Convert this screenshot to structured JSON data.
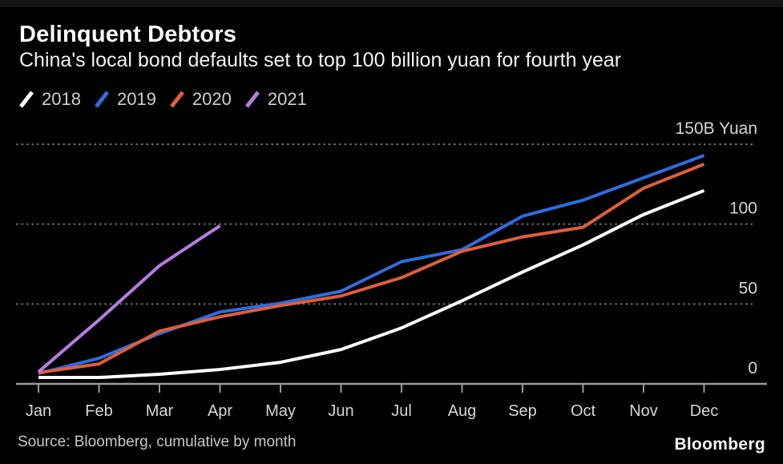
{
  "header": {
    "title": "Delinquent Debtors",
    "subtitle": "China's local bond defaults set to top 100 billion yuan for fourth year"
  },
  "legend": {
    "items": [
      {
        "label": "2018",
        "color": "#ffffff"
      },
      {
        "label": "2019",
        "color": "#2e6cdf"
      },
      {
        "label": "2020",
        "color": "#dc5f3a"
      },
      {
        "label": "2021",
        "color": "#b57ce4"
      }
    ]
  },
  "chart_data": {
    "type": "line",
    "title": "Delinquent Debtors",
    "subtitle": "China's local bond defaults set to top 100 billion yuan for fourth year",
    "xlabel": "",
    "ylabel": "B Yuan",
    "categories": [
      "Jan",
      "Feb",
      "Mar",
      "Apr",
      "May",
      "Jun",
      "Jul",
      "Aug",
      "Sep",
      "Oct",
      "Nov",
      "Dec"
    ],
    "series": [
      {
        "name": "2018",
        "color": "#ffffff",
        "values": [
          4,
          4,
          6,
          9,
          13.5,
          21.5,
          35,
          52,
          70,
          87,
          106,
          121
        ]
      },
      {
        "name": "2019",
        "color": "#2e6cdf",
        "values": [
          6.5,
          16,
          31.5,
          45,
          50.5,
          58,
          76.5,
          84,
          105,
          115,
          129,
          143
        ]
      },
      {
        "name": "2020",
        "color": "#dc5f3a",
        "values": [
          7,
          12.5,
          33,
          42,
          49,
          55,
          66.5,
          83,
          92,
          98,
          122.5,
          137.5
        ]
      },
      {
        "name": "2021",
        "color": "#b57ce4",
        "values": [
          7.5,
          40,
          74,
          99
        ]
      }
    ],
    "ylim": [
      0,
      150
    ],
    "yticks": [
      {
        "value": 0,
        "label": "0"
      },
      {
        "value": 50,
        "label": "50"
      },
      {
        "value": 100,
        "label": "100"
      },
      {
        "value": 150,
        "label": "150B Yuan"
      }
    ],
    "grid": "horizontal-dotted",
    "legend_position": "top-left",
    "axis_color": "#9a9a9a",
    "grid_color": "#8c8c8c",
    "tick_label_color": "#d6d6d6"
  },
  "footer": {
    "source": "Source: Bloomberg, cumulative by month",
    "brand": "Bloomberg"
  }
}
